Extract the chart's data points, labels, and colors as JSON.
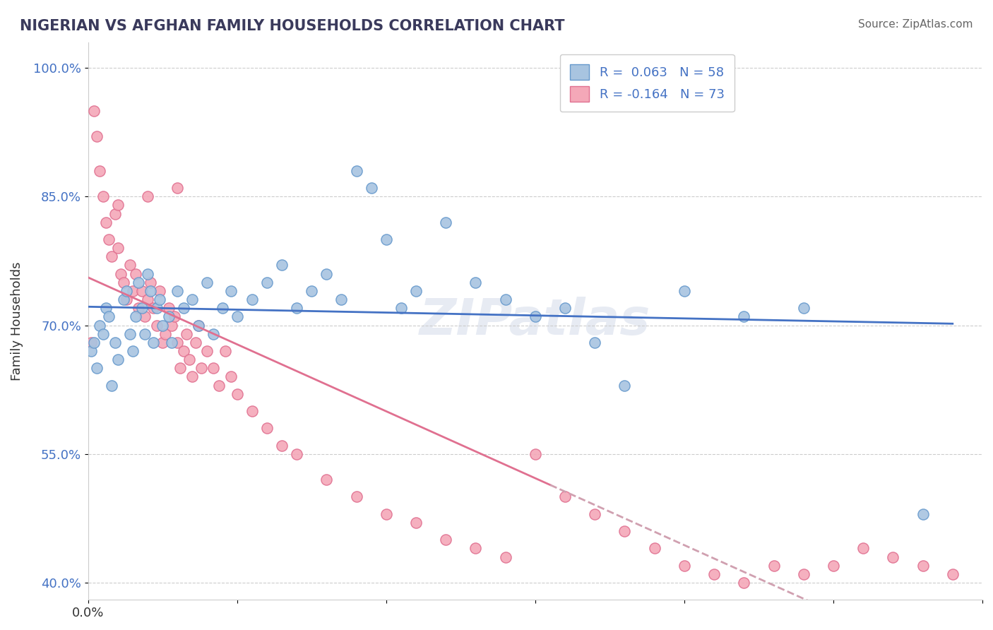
{
  "title": "NIGERIAN VS AFGHAN FAMILY HOUSEHOLDS CORRELATION CHART",
  "source": "Source: ZipAtlas.com",
  "xlabel": "",
  "ylabel": "Family Households",
  "xlim": [
    0.0,
    0.3
  ],
  "ylim": [
    0.38,
    1.03
  ],
  "yticks": [
    0.4,
    0.55,
    0.7,
    0.85,
    1.0
  ],
  "ytick_labels": [
    "40.0%",
    "55.0%",
    "70.0%",
    "85.0%",
    "100.0%"
  ],
  "xticks": [
    0.0,
    0.05,
    0.1,
    0.15,
    0.2,
    0.25,
    0.3
  ],
  "xtick_labels": [
    "0.0%",
    "",
    "",
    "",
    "",
    "",
    ""
  ],
  "nigerian_R": 0.063,
  "nigerian_N": 58,
  "afghan_R": -0.164,
  "afghan_N": 73,
  "nigerian_color": "#a8c4e0",
  "afghan_color": "#f4a8b8",
  "nigerian_edge_color": "#6699cc",
  "afghan_edge_color": "#e07090",
  "trend_nigerian_color": "#4472c4",
  "trend_afghan_color": "#e07090",
  "trend_afghan_dash_color": "#d0a0b0",
  "background_color": "#ffffff",
  "grid_color": "#cccccc",
  "watermark": "ZIPatlas",
  "nigerian_x": [
    0.001,
    0.002,
    0.003,
    0.004,
    0.005,
    0.006,
    0.007,
    0.008,
    0.009,
    0.01,
    0.012,
    0.013,
    0.014,
    0.015,
    0.016,
    0.017,
    0.018,
    0.019,
    0.02,
    0.021,
    0.022,
    0.023,
    0.024,
    0.025,
    0.027,
    0.028,
    0.03,
    0.032,
    0.035,
    0.037,
    0.04,
    0.042,
    0.045,
    0.048,
    0.05,
    0.055,
    0.06,
    0.065,
    0.07,
    0.075,
    0.08,
    0.085,
    0.09,
    0.095,
    0.1,
    0.105,
    0.11,
    0.12,
    0.13,
    0.14,
    0.15,
    0.16,
    0.17,
    0.18,
    0.2,
    0.22,
    0.24,
    0.28
  ],
  "nigerian_y": [
    0.67,
    0.68,
    0.65,
    0.7,
    0.69,
    0.72,
    0.71,
    0.63,
    0.68,
    0.66,
    0.73,
    0.74,
    0.69,
    0.67,
    0.71,
    0.75,
    0.72,
    0.69,
    0.76,
    0.74,
    0.68,
    0.72,
    0.73,
    0.7,
    0.71,
    0.68,
    0.74,
    0.72,
    0.73,
    0.7,
    0.75,
    0.69,
    0.72,
    0.74,
    0.71,
    0.73,
    0.75,
    0.77,
    0.72,
    0.74,
    0.76,
    0.73,
    0.88,
    0.86,
    0.8,
    0.72,
    0.74,
    0.82,
    0.75,
    0.73,
    0.71,
    0.72,
    0.68,
    0.63,
    0.74,
    0.71,
    0.72,
    0.48
  ],
  "afghan_x": [
    0.001,
    0.002,
    0.003,
    0.004,
    0.005,
    0.006,
    0.007,
    0.008,
    0.009,
    0.01,
    0.011,
    0.012,
    0.013,
    0.014,
    0.015,
    0.016,
    0.017,
    0.018,
    0.019,
    0.02,
    0.021,
    0.022,
    0.023,
    0.024,
    0.025,
    0.026,
    0.027,
    0.028,
    0.029,
    0.03,
    0.031,
    0.032,
    0.033,
    0.034,
    0.035,
    0.036,
    0.037,
    0.038,
    0.04,
    0.042,
    0.044,
    0.046,
    0.048,
    0.05,
    0.055,
    0.06,
    0.065,
    0.07,
    0.08,
    0.09,
    0.1,
    0.11,
    0.12,
    0.13,
    0.14,
    0.15,
    0.16,
    0.17,
    0.18,
    0.19,
    0.2,
    0.21,
    0.22,
    0.23,
    0.24,
    0.25,
    0.26,
    0.27,
    0.28,
    0.29,
    0.01,
    0.02,
    0.03
  ],
  "afghan_y": [
    0.68,
    0.95,
    0.92,
    0.88,
    0.85,
    0.82,
    0.8,
    0.78,
    0.83,
    0.79,
    0.76,
    0.75,
    0.73,
    0.77,
    0.74,
    0.76,
    0.72,
    0.74,
    0.71,
    0.73,
    0.75,
    0.72,
    0.7,
    0.74,
    0.68,
    0.69,
    0.72,
    0.7,
    0.71,
    0.68,
    0.65,
    0.67,
    0.69,
    0.66,
    0.64,
    0.68,
    0.7,
    0.65,
    0.67,
    0.65,
    0.63,
    0.67,
    0.64,
    0.62,
    0.6,
    0.58,
    0.56,
    0.55,
    0.52,
    0.5,
    0.48,
    0.47,
    0.45,
    0.44,
    0.43,
    0.55,
    0.5,
    0.48,
    0.46,
    0.44,
    0.42,
    0.41,
    0.4,
    0.42,
    0.41,
    0.42,
    0.44,
    0.43,
    0.42,
    0.41,
    0.84,
    0.85,
    0.86
  ]
}
